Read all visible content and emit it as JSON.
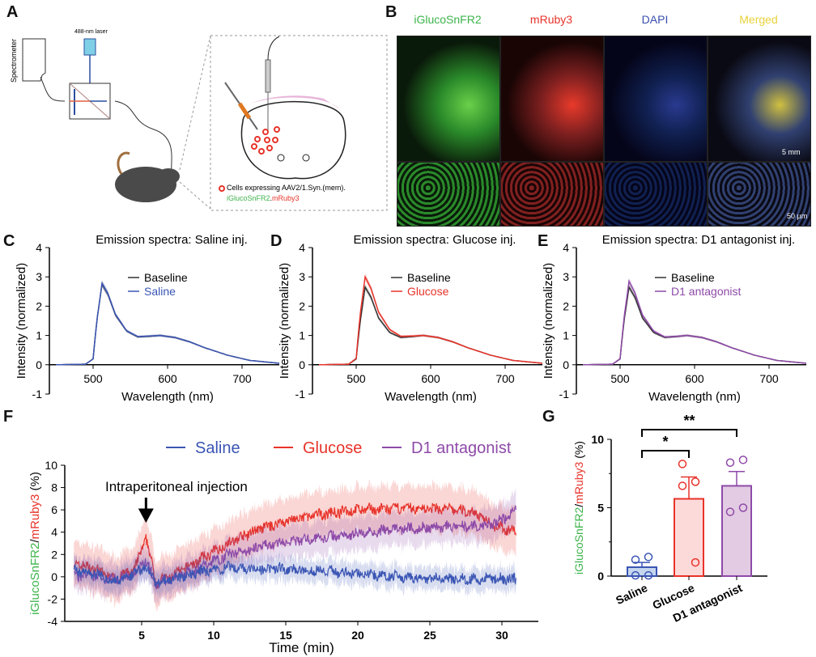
{
  "panels": {
    "A": "A",
    "B": "B",
    "C": "C",
    "D": "D",
    "E": "E",
    "F": "F",
    "G": "G"
  },
  "panel_a": {
    "spectrometer": "Spectrometer",
    "laser": "488-nm laser",
    "legend_line1": "Cells expressing AAV2/1.Syn.(mem).",
    "legend_green": "iGlucoSnFR2",
    "legend_dot": ".",
    "legend_red": "mRuby3"
  },
  "panel_b": {
    "columns": [
      "iGlucoSnFR2",
      "mRuby3",
      "DAPI",
      "Merged"
    ],
    "column_colors": [
      "#3cb44b",
      "#e8332a",
      "#3a4fb0",
      "#e8d23a"
    ],
    "scale_top": "5 mm",
    "scale_bottom": "50 µm"
  },
  "colors": {
    "baseline": "#333333",
    "saline": "#3a55b4",
    "glucose": "#e8332a",
    "d1": "#8e4aa8"
  },
  "chart_data": [
    {
      "type": "line",
      "title": "Emission spectra: Saline inj.",
      "xlabel": "Wavelength (nm)",
      "ylabel": "Intensity (normalized)",
      "xlim": [
        450,
        750
      ],
      "ylim": [
        -1,
        4
      ],
      "xticks": [
        500,
        600,
        700
      ],
      "yticks": [
        -1,
        0,
        1,
        2,
        3,
        4
      ],
      "x": [
        450,
        490,
        500,
        505,
        512,
        520,
        530,
        545,
        560,
        575,
        590,
        610,
        630,
        650,
        680,
        710,
        750
      ],
      "series": [
        {
          "name": "Baseline",
          "values": [
            0,
            0.02,
            0.2,
            1.5,
            2.75,
            2.4,
            1.7,
            1.15,
            0.95,
            0.97,
            1.0,
            0.93,
            0.78,
            0.58,
            0.33,
            0.15,
            0.05
          ]
        },
        {
          "name": "Saline",
          "values": [
            0,
            0.02,
            0.2,
            1.5,
            2.78,
            2.42,
            1.72,
            1.16,
            0.96,
            0.98,
            1.0,
            0.93,
            0.78,
            0.58,
            0.33,
            0.15,
            0.05
          ]
        }
      ]
    },
    {
      "type": "line",
      "title": "Emission spectra: Glucose inj.",
      "xlabel": "Wavelength (nm)",
      "ylabel": "Intensity (normalized)",
      "xlim": [
        450,
        750
      ],
      "ylim": [
        -1,
        4
      ],
      "xticks": [
        500,
        600,
        700
      ],
      "yticks": [
        -1,
        0,
        1,
        2,
        3,
        4
      ],
      "x": [
        450,
        490,
        500,
        505,
        512,
        520,
        530,
        545,
        560,
        575,
        590,
        610,
        630,
        650,
        680,
        710,
        750
      ],
      "series": [
        {
          "name": "Baseline",
          "values": [
            0,
            0.02,
            0.2,
            1.4,
            2.65,
            2.3,
            1.6,
            1.1,
            0.93,
            0.96,
            1.0,
            0.93,
            0.78,
            0.58,
            0.33,
            0.15,
            0.05
          ]
        },
        {
          "name": "Glucose",
          "values": [
            0,
            0.02,
            0.22,
            1.65,
            3.0,
            2.6,
            1.8,
            1.2,
            0.97,
            0.98,
            1.0,
            0.93,
            0.78,
            0.58,
            0.33,
            0.15,
            0.05
          ]
        }
      ]
    },
    {
      "type": "line",
      "title": "Emission spectra: D1 antagonist inj.",
      "xlabel": "Wavelength (nm)",
      "ylabel": "Intensity (normalized)",
      "xlim": [
        450,
        750
      ],
      "ylim": [
        -1,
        4
      ],
      "xticks": [
        500,
        600,
        700
      ],
      "yticks": [
        -1,
        0,
        1,
        2,
        3,
        4
      ],
      "x": [
        450,
        490,
        500,
        505,
        512,
        520,
        530,
        545,
        560,
        575,
        590,
        610,
        630,
        650,
        680,
        710,
        750
      ],
      "series": [
        {
          "name": "Baseline",
          "values": [
            0,
            0.02,
            0.2,
            1.45,
            2.65,
            2.3,
            1.6,
            1.1,
            0.93,
            0.96,
            1.0,
            0.93,
            0.78,
            0.58,
            0.33,
            0.15,
            0.05
          ]
        },
        {
          "name": "D1 antagonist",
          "values": [
            0,
            0.02,
            0.21,
            1.55,
            2.85,
            2.45,
            1.7,
            1.15,
            0.95,
            0.97,
            1.0,
            0.93,
            0.78,
            0.58,
            0.33,
            0.15,
            0.05
          ]
        }
      ]
    },
    {
      "type": "line",
      "xlabel": "Time (min)",
      "ylabel": "iGlucoSnFR2/mRuby3 (%)",
      "ylabel_green": "iGlucoSnFR2",
      "ylabel_red": "mRuby3",
      "ylabel_rest": "/",
      "ylabel_unit": " (%)",
      "xlim": [
        0.3,
        31
      ],
      "ylim": [
        -4,
        10
      ],
      "xticks": [
        5,
        10,
        15,
        20,
        25,
        30
      ],
      "yticks": [
        -4,
        -2,
        0,
        2,
        4,
        6,
        8,
        10
      ],
      "annotation": "Intraperitoneal injection",
      "annotation_x": 5.3,
      "series": [
        {
          "name": "Saline",
          "sem": 1.0,
          "points": [
            [
              0.3,
              0.6
            ],
            [
              2,
              0.2
            ],
            [
              3,
              -0.4
            ],
            [
              4.5,
              0.3
            ],
            [
              5.3,
              1
            ],
            [
              6,
              -0.6
            ],
            [
              7,
              -0.2
            ],
            [
              9,
              0.4
            ],
            [
              11,
              0.8
            ],
            [
              15,
              0.7
            ],
            [
              18,
              0.5
            ],
            [
              20,
              0.3
            ],
            [
              23,
              0
            ],
            [
              26,
              -0.2
            ],
            [
              31,
              -0.2
            ]
          ]
        },
        {
          "name": "Glucose",
          "sem": 2.0,
          "points": [
            [
              0.3,
              1.2
            ],
            [
              2,
              0.6
            ],
            [
              3,
              -0.2
            ],
            [
              4.5,
              0.6
            ],
            [
              5.3,
              3.5
            ],
            [
              6,
              -0.5
            ],
            [
              7,
              0
            ],
            [
              9,
              1.5
            ],
            [
              11,
              3
            ],
            [
              13,
              4.2
            ],
            [
              15,
              5
            ],
            [
              18,
              5.7
            ],
            [
              20,
              6
            ],
            [
              23,
              6.1
            ],
            [
              26,
              6.1
            ],
            [
              28,
              5.8
            ],
            [
              29.5,
              4.6
            ],
            [
              31,
              4
            ]
          ]
        },
        {
          "name": "D1 antagonist",
          "sem": 1.5,
          "points": [
            [
              0.3,
              0.2
            ],
            [
              2,
              0
            ],
            [
              3,
              -0.2
            ],
            [
              4.5,
              0.2
            ],
            [
              5.3,
              1.5
            ],
            [
              6,
              -0.7
            ],
            [
              7,
              -0.2
            ],
            [
              9,
              0.8
            ],
            [
              11,
              2
            ],
            [
              13,
              2.6
            ],
            [
              15,
              3.1
            ],
            [
              18,
              3.6
            ],
            [
              20,
              3.9
            ],
            [
              23,
              4.3
            ],
            [
              26,
              4.5
            ],
            [
              29,
              4.5
            ],
            [
              30.5,
              5.5
            ],
            [
              31,
              6
            ]
          ]
        }
      ]
    },
    {
      "type": "bar",
      "ylabel": "iGlucoSnFR2/mRuby3 (%)",
      "ylim": [
        0,
        10
      ],
      "yticks": [
        0,
        5,
        10
      ],
      "categories": [
        "Saline",
        "Glucose",
        "D1 antagonist"
      ],
      "values": [
        0.65,
        5.65,
        6.6
      ],
      "sem": [
        0.35,
        1.6,
        1.05
      ],
      "points": [
        [
          1.2,
          1.4,
          0.05,
          0.05
        ],
        [
          8.2,
          6.9,
          6.6,
          1.0
        ],
        [
          8.3,
          8.5,
          4.7,
          5.0
        ]
      ],
      "significance": [
        {
          "pair": [
            "Saline",
            "Glucose"
          ],
          "label": "*"
        },
        {
          "pair": [
            "Saline",
            "D1 antagonist"
          ],
          "label": "**"
        }
      ]
    }
  ]
}
